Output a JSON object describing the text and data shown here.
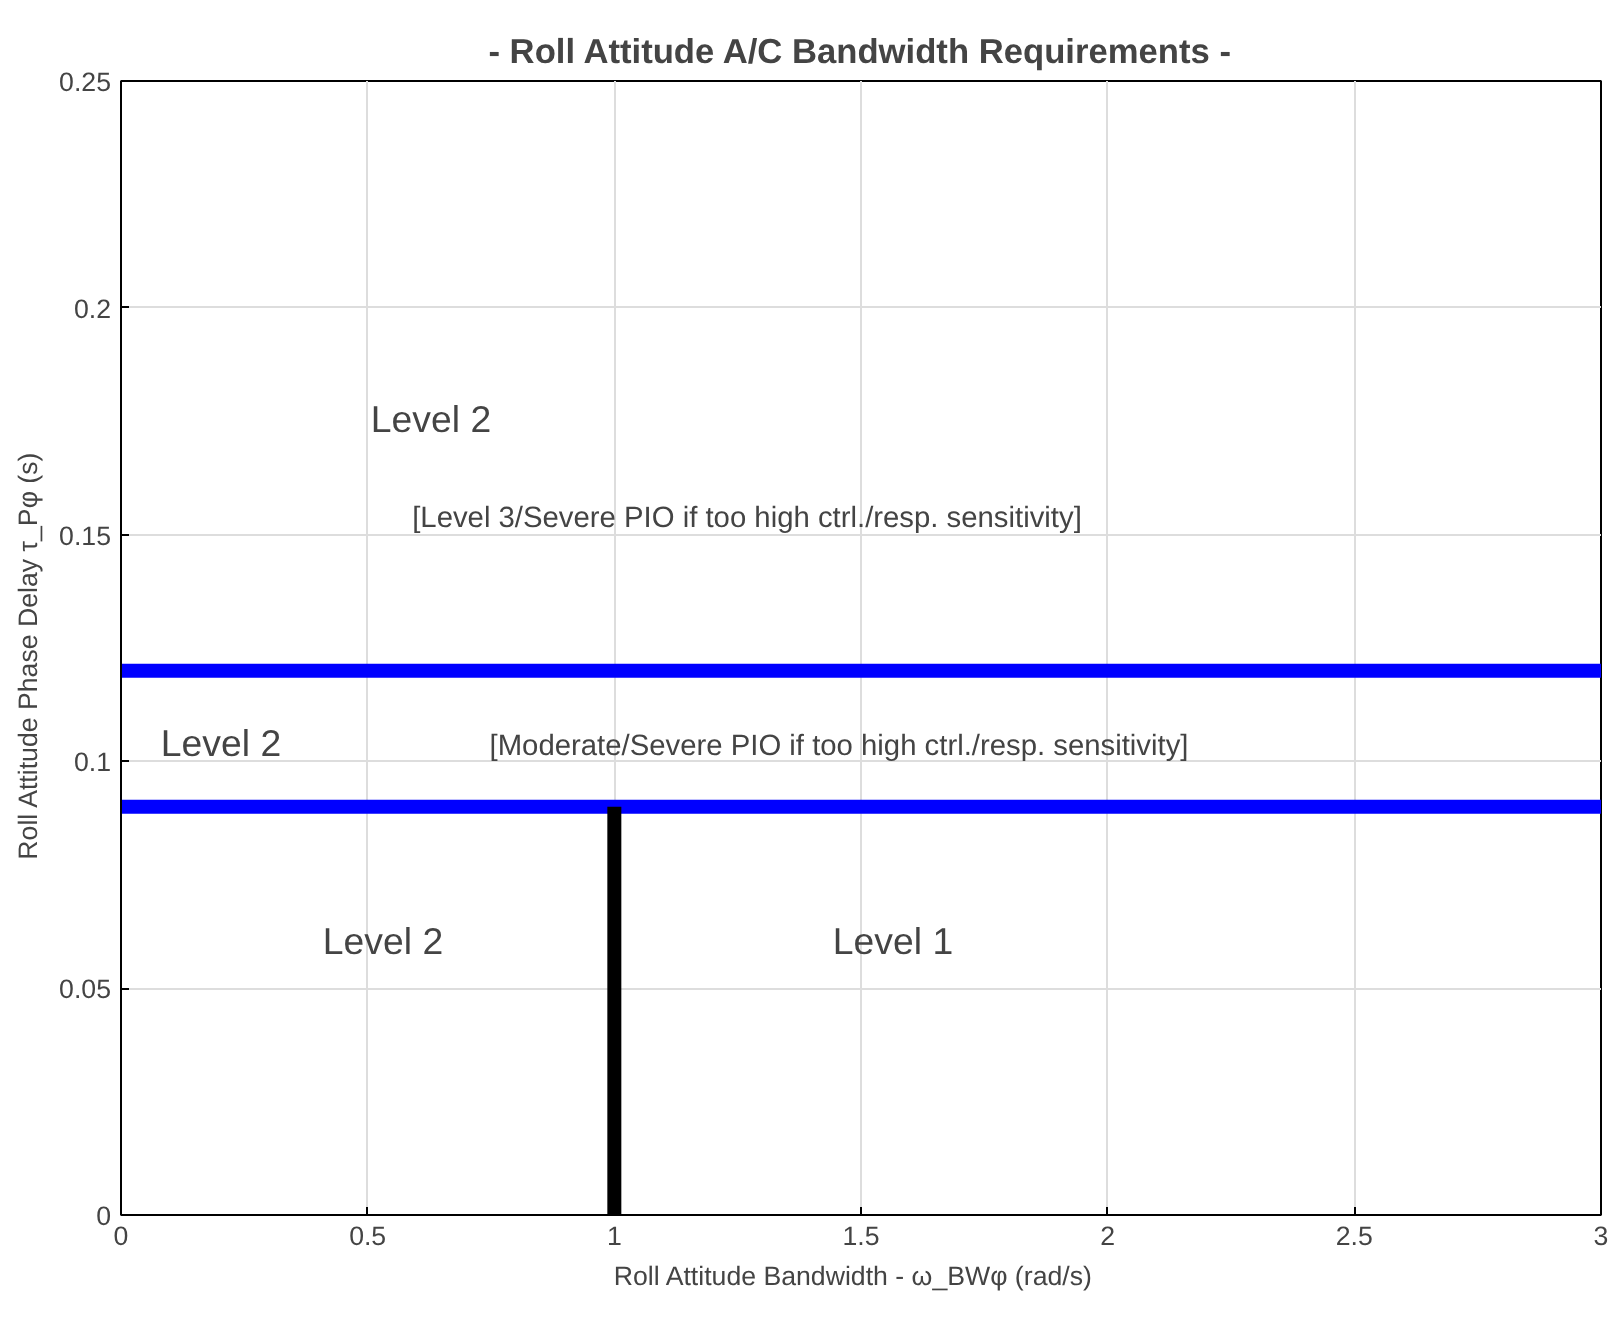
{
  "chart_data": {
    "type": "line",
    "title": "- Roll Attitude A/C Bandwidth Requirements -",
    "xlabel": "Roll Attitude Bandwidth  -  ω_BWφ (rad/s)",
    "ylabel": "Roll Attitude Phase Delay   τ_Pφ (s)",
    "series": [
      {
        "color": "#0000ff",
        "x": [
          0,
          3
        ],
        "values": [
          0.12,
          0.12
        ]
      },
      {
        "color": "#0000ff",
        "x": [
          0,
          3
        ],
        "values": [
          0.09,
          0.09
        ]
      },
      {
        "color": "#000000",
        "x": [
          1,
          1
        ],
        "values": [
          0,
          0.09
        ]
      }
    ],
    "xlim": [
      0,
      3
    ],
    "ylim": [
      0,
      0.25
    ],
    "xticks": [
      0,
      0.5,
      1,
      1.5,
      2,
      2.5,
      3
    ],
    "yticks": [
      0,
      0.05,
      0.1,
      0.15,
      0.2,
      0.25
    ],
    "grid": true,
    "annotations": [
      "Level 2",
      "[Level 3/Severe PIO if too high ctrl./resp. sensitivity]",
      "Level 2",
      "[Moderate/Severe PIO if too high ctrl./resp. sensitivity]",
      "Level 2",
      "Level 1"
    ]
  }
}
